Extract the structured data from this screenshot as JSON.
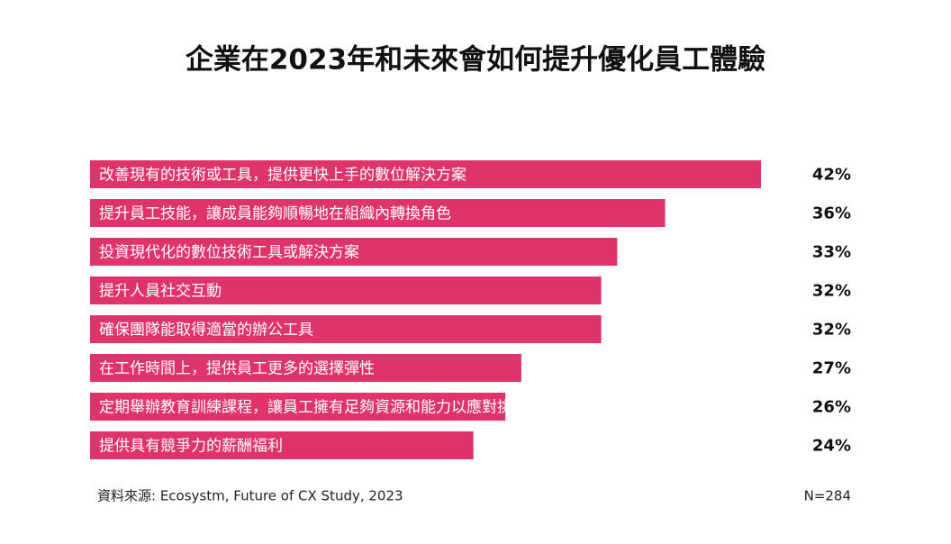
{
  "chart_data": {
    "type": "bar",
    "orientation": "horizontal",
    "title": "企業在2023年和未來會如何提升優化員工體驗",
    "categories": [
      "改善現有的技術或工具，提供更快上手的數位解決方案",
      "提升員工技能，讓成員能夠順暢地在組織內轉換角色",
      "投資現代化的數位技術工具或解決方案",
      "提升人員社交互動",
      "確保團隊能取得適當的辦公工具",
      "在工作時間上，提供員工更多的選擇彈性",
      "定期舉辦教育訓練課程，讓員工擁有足夠資源和能力以應對挑戰",
      "提供具有競爭力的薪酬福利"
    ],
    "values": [
      42,
      36,
      33,
      32,
      32,
      27,
      26,
      24
    ],
    "value_labels": [
      "42%",
      "36%",
      "33%",
      "32%",
      "32%",
      "27%",
      "26%",
      "24%"
    ],
    "color": "#de3469",
    "source": "資料來源: Ecosystm, Future of CX Study, 2023",
    "sample_size": "N=284"
  }
}
